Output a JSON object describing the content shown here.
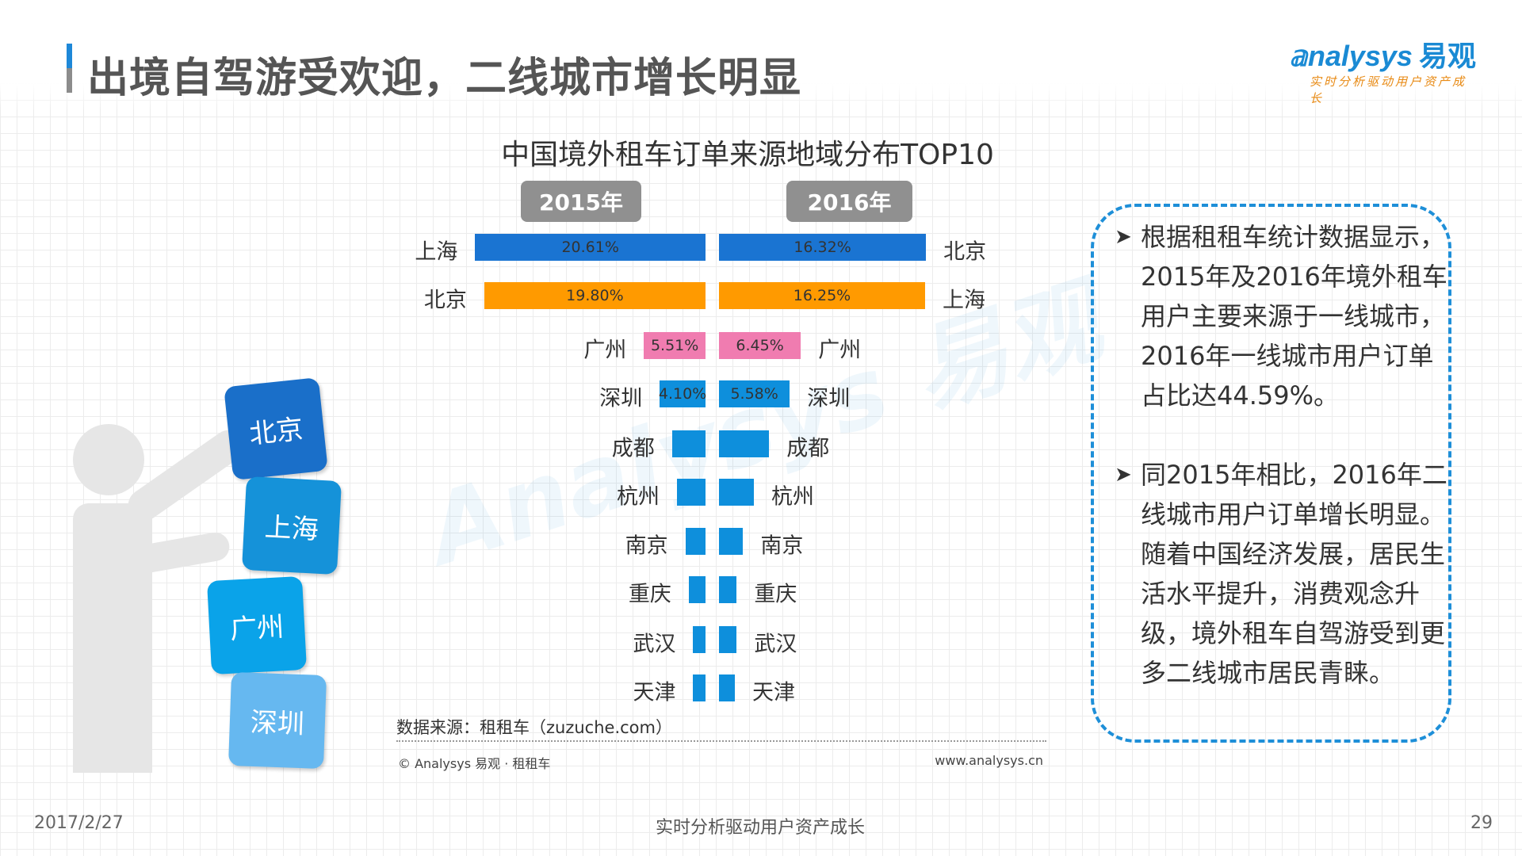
{
  "slide": {
    "title": "出境自驾游受欢迎，二线城市增长明显",
    "date": "2017/2/27",
    "footer": "实时分析驱动用户资产成长",
    "page": "29"
  },
  "logo": {
    "en": "nalysys",
    "cn": "易观",
    "tagline": "实时分析驱动用户资产成长",
    "watermark": "Analysys 易观"
  },
  "illustration": {
    "blocks": [
      "北京",
      "上海",
      "广州",
      "深圳"
    ],
    "colors": [
      "#1a6fc9",
      "#1592d9",
      "#0aa3e9",
      "#66b8f0"
    ]
  },
  "chart_data": {
    "type": "bar",
    "title": "中国境外租车订单来源地域分布TOP10",
    "panels": [
      {
        "name": "2015年",
        "categories": [
          "上海",
          "北京",
          "广州",
          "深圳",
          "成都",
          "杭州",
          "南京",
          "重庆",
          "武汉",
          "天津"
        ],
        "values": [
          20.61,
          19.8,
          5.51,
          4.1,
          3.0,
          2.55,
          1.8,
          1.5,
          1.1,
          1.1
        ],
        "labels": [
          "20.61%",
          "19.80%",
          "5.51%",
          "4.10%",
          "",
          "",
          "",
          "",
          "",
          ""
        ],
        "colors": [
          "#1a74d2",
          "#ff9a00",
          "#f07cb0",
          "#0e8fdc",
          "#0e8fdc",
          "#0e8fdc",
          "#0e8fdc",
          "#0e8fdc",
          "#0e8fdc",
          "#0e8fdc"
        ]
      },
      {
        "name": "2016年",
        "categories": [
          "北京",
          "上海",
          "广州",
          "深圳",
          "成都",
          "杭州",
          "南京",
          "重庆",
          "武汉",
          "天津"
        ],
        "values": [
          16.32,
          16.25,
          6.45,
          5.58,
          3.95,
          2.75,
          1.9,
          1.4,
          1.4,
          1.25
        ],
        "labels": [
          "16.32%",
          "16.25%",
          "6.45%",
          "5.58%",
          "",
          "",
          "",
          "",
          "",
          ""
        ],
        "colors": [
          "#1a74d2",
          "#ff9a00",
          "#f07cb0",
          "#0e8fdc",
          "#0e8fdc",
          "#0e8fdc",
          "#0e8fdc",
          "#0e8fdc",
          "#0e8fdc",
          "#0e8fdc"
        ]
      }
    ],
    "unit": "%"
  },
  "source": {
    "text": "数据来源：租租车（zuzuche.com）",
    "copyright": "© Analysys 易观 · 租租车",
    "site": "www.analysys.cn"
  },
  "notes": [
    "根据租租车统计数据显示，2015年及2016年境外租车用户主要来源于一线城市，2016年一线城市用户订单占比达44.59%。",
    "同2015年相比，2016年二线城市用户订单增长明显。随着中国经济发展，居民生活水平提升，消费观念升级，境外租车自驾游受到更多二线城市居民青睐。"
  ]
}
